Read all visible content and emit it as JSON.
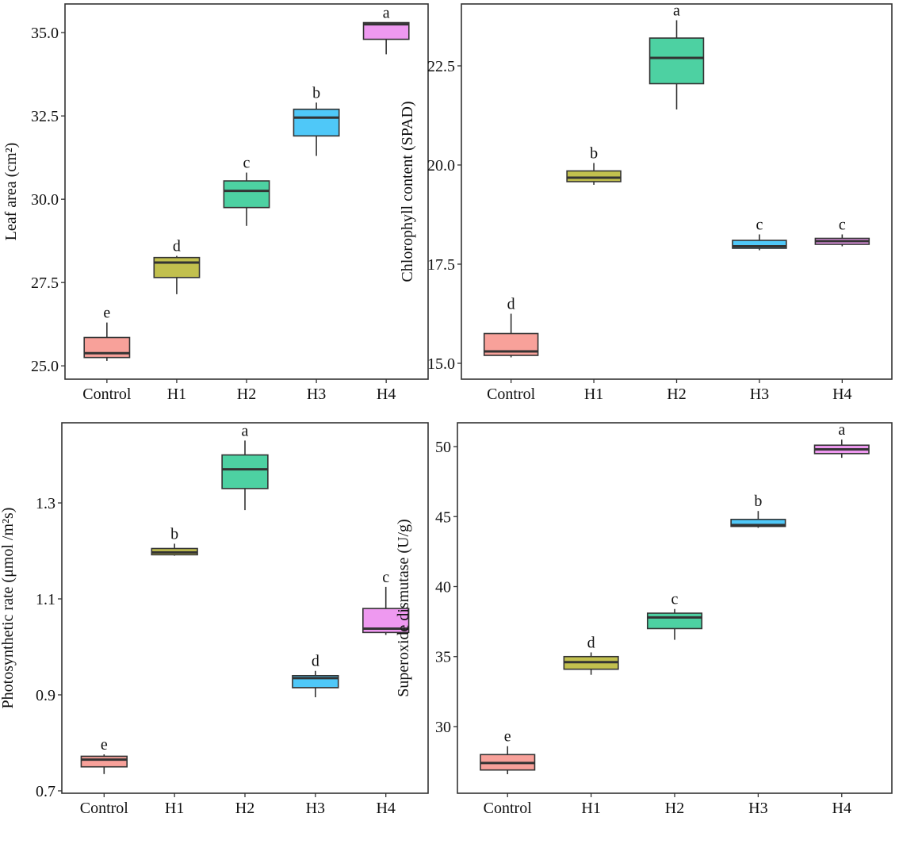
{
  "chart_data": [
    {
      "type": "box",
      "ylabel": "Leaf area (cm²)",
      "categories": [
        "Control",
        "H1",
        "H2",
        "H3",
        "H4"
      ],
      "ylim": [
        24.6,
        35.86
      ],
      "yticks": [
        25.0,
        27.5,
        30.0,
        32.5,
        35.0
      ],
      "tick_labels": [
        "25.0",
        "27.5",
        "30.0",
        "32.5",
        "35.0"
      ],
      "boxes": [
        {
          "min": 25.15,
          "q1": 25.25,
          "median": 25.38,
          "q3": 25.85,
          "max": 26.3
        },
        {
          "min": 27.15,
          "q1": 27.65,
          "median": 28.1,
          "q3": 28.25,
          "max": 28.3
        },
        {
          "min": 29.2,
          "q1": 29.75,
          "median": 30.25,
          "q3": 30.55,
          "max": 30.8
        },
        {
          "min": 31.3,
          "q1": 31.9,
          "median": 32.45,
          "q3": 32.7,
          "max": 32.9
        },
        {
          "min": 34.35,
          "q1": 34.8,
          "median": 35.25,
          "q3": 35.3,
          "max": 35.3
        }
      ],
      "letters": [
        "e",
        "d",
        "c",
        "b",
        "a"
      ]
    },
    {
      "type": "box",
      "ylabel": "Chlorophyll content (SPAD)",
      "categories": [
        "Control",
        "H1",
        "H2",
        "H3",
        "H4"
      ],
      "ylim": [
        14.6,
        24.06
      ],
      "yticks": [
        15.0,
        17.5,
        20.0,
        22.5
      ],
      "tick_labels": [
        "15.0",
        "17.5",
        "20.0",
        "22.5"
      ],
      "boxes": [
        {
          "min": 15.15,
          "q1": 15.2,
          "median": 15.3,
          "q3": 15.75,
          "max": 16.25
        },
        {
          "min": 19.5,
          "q1": 19.58,
          "median": 19.68,
          "q3": 19.85,
          "max": 20.05
        },
        {
          "min": 21.4,
          "q1": 22.05,
          "median": 22.7,
          "q3": 23.2,
          "max": 23.65
        },
        {
          "min": 17.85,
          "q1": 17.9,
          "median": 17.95,
          "q3": 18.1,
          "max": 18.25
        },
        {
          "min": 17.95,
          "q1": 18.0,
          "median": 18.08,
          "q3": 18.15,
          "max": 18.25
        }
      ],
      "letters": [
        "d",
        "b",
        "a",
        "c",
        "c"
      ]
    },
    {
      "type": "box",
      "ylabel": "Photosynthetic rate (μmol /m²s)",
      "categories": [
        "Control",
        "H1",
        "H2",
        "H3",
        "H4"
      ],
      "ylim": [
        0.695,
        1.467
      ],
      "yticks": [
        0.7,
        0.9,
        1.1,
        1.3
      ],
      "tick_labels": [
        "0.7",
        "0.9",
        "1.1",
        "1.3"
      ],
      "boxes": [
        {
          "min": 0.735,
          "q1": 0.75,
          "median": 0.765,
          "q3": 0.772,
          "max": 0.776
        },
        {
          "min": 1.19,
          "q1": 1.192,
          "median": 1.197,
          "q3": 1.205,
          "max": 1.215
        },
        {
          "min": 1.285,
          "q1": 1.33,
          "median": 1.37,
          "q3": 1.4,
          "max": 1.43
        },
        {
          "min": 0.895,
          "q1": 0.915,
          "median": 0.935,
          "q3": 0.94,
          "max": 0.95
        },
        {
          "min": 1.025,
          "q1": 1.03,
          "median": 1.038,
          "q3": 1.08,
          "max": 1.125
        }
      ],
      "letters": [
        "e",
        "b",
        "a",
        "d",
        "c"
      ]
    },
    {
      "type": "box",
      "ylabel": "Superoxide dismutase (U/g)",
      "categories": [
        "Control",
        "H1",
        "H2",
        "H3",
        "H4"
      ],
      "ylim": [
        25.24,
        51.7
      ],
      "yticks": [
        30,
        35,
        40,
        45,
        50
      ],
      "tick_labels": [
        "30",
        "35",
        "40",
        "45",
        "50"
      ],
      "boxes": [
        {
          "min": 26.6,
          "q1": 26.9,
          "median": 27.4,
          "q3": 28.0,
          "max": 28.6
        },
        {
          "min": 33.7,
          "q1": 34.1,
          "median": 34.6,
          "q3": 35.0,
          "max": 35.3
        },
        {
          "min": 36.2,
          "q1": 37.0,
          "median": 37.8,
          "q3": 38.1,
          "max": 38.4
        },
        {
          "min": 44.2,
          "q1": 44.3,
          "median": 44.4,
          "q3": 44.8,
          "max": 45.4
        },
        {
          "min": 49.2,
          "q1": 49.5,
          "median": 49.8,
          "q3": 50.1,
          "max": 50.5
        }
      ],
      "letters": [
        "e",
        "d",
        "c",
        "b",
        "a"
      ]
    }
  ],
  "colors": [
    "#F8A19A",
    "#C2C04E",
    "#4DD1A2",
    "#4FC8F8",
    "#EE99F0"
  ]
}
